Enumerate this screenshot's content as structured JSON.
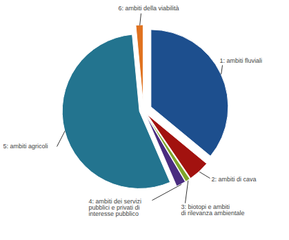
{
  "chart_data": {
    "type": "pie",
    "categories": [
      "1: ambiti fluviali",
      "2: ambiti di cava",
      "3: biotopi e ambiti\ndi rilevanza ambientale",
      "4: ambiti dei servizi\npubblici e privati di\ninteresse pubblico",
      "5: ambiti agricoli",
      "6: ambiti della viabilità"
    ],
    "values": [
      36,
      4.5,
      1,
      2,
      55,
      1.5
    ],
    "colors": [
      "#1d4f8e",
      "#a2120f",
      "#7fa52a",
      "#4a2c80",
      "#23748f",
      "#e0721f"
    ]
  }
}
